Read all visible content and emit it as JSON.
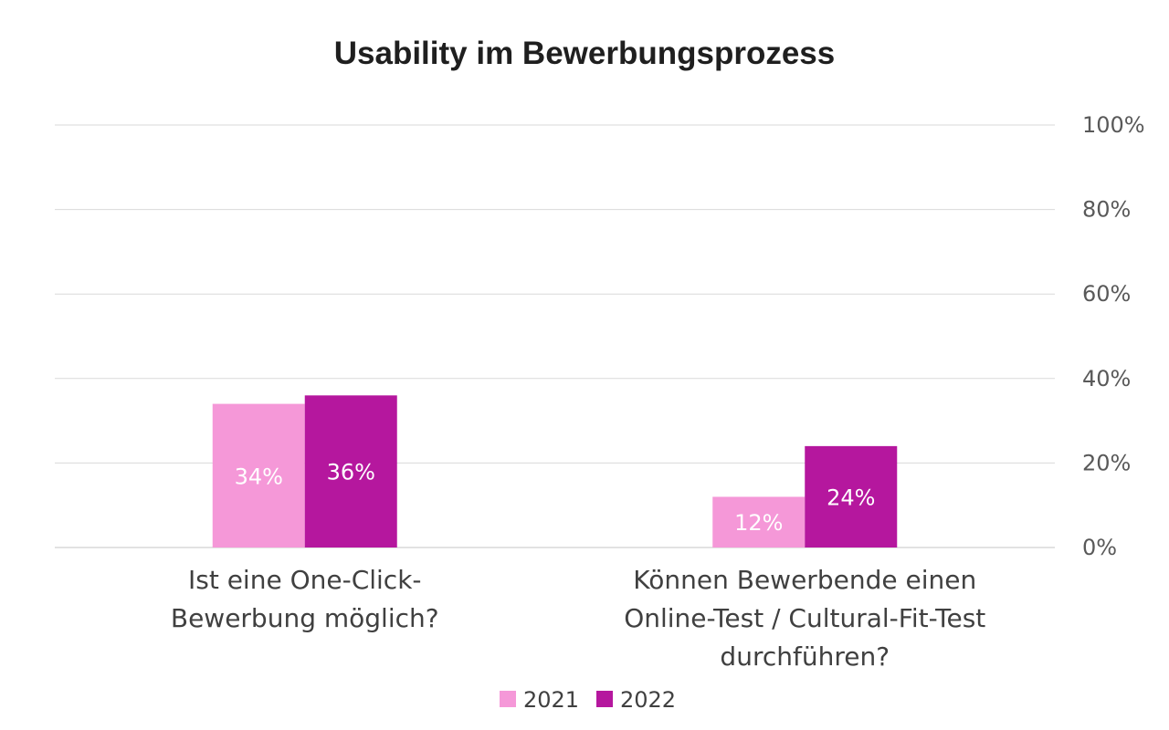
{
  "chart_data": {
    "type": "bar",
    "title": "Usability im Bewerbungsprozess",
    "categories": [
      "Ist eine One-Click-Bewerbung möglich?",
      "Können Bewerbende einen Online-Test / Cultural-Fit-Test durchführen?"
    ],
    "category_lines": [
      [
        "Ist eine One-Click-",
        "Bewerbung möglich?"
      ],
      [
        "Können Bewerbende einen",
        "Online-Test / Cultural-Fit-Test",
        "durchführen?"
      ]
    ],
    "series": [
      {
        "name": "2021",
        "values": [
          34,
          12
        ],
        "labels": [
          "34%",
          "12%"
        ],
        "color": "#f598d8"
      },
      {
        "name": "2022",
        "values": [
          36,
          24
        ],
        "labels": [
          "36%",
          "24%"
        ],
        "color": "#b5179e"
      }
    ],
    "ylim": [
      0,
      100
    ],
    "yticks": [
      0,
      20,
      40,
      60,
      80,
      100
    ],
    "ytick_labels": [
      "0%",
      "20%",
      "40%",
      "60%",
      "80%",
      "100%"
    ],
    "y_axis_side": "right",
    "grid": true,
    "legend_position": "bottom",
    "xlabel": "",
    "ylabel": ""
  }
}
